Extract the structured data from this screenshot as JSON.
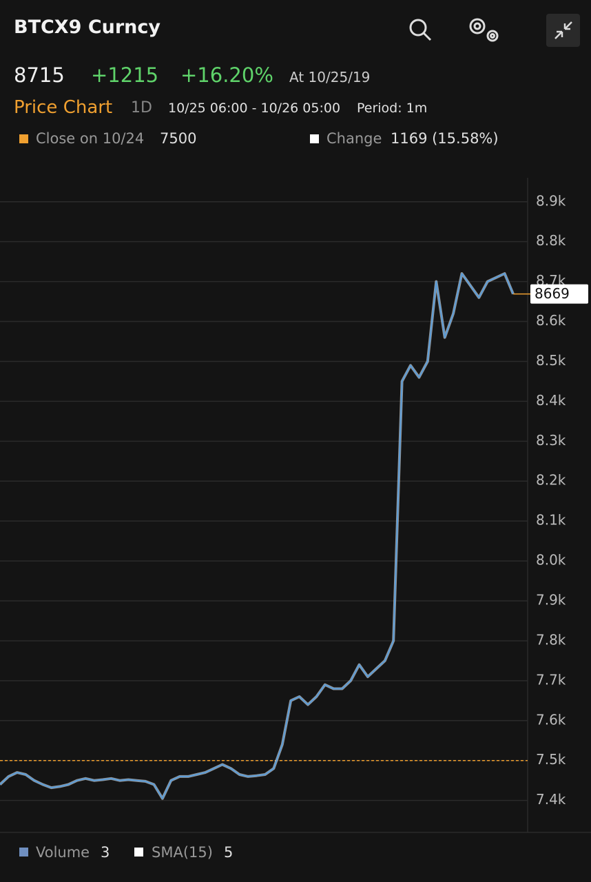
{
  "header": {
    "title": "BTCX9 Curncy",
    "price": "8715",
    "change": "+1215",
    "change_pct": "+16.20%",
    "date": "At 10/25/19",
    "tab": "Price Chart",
    "range": "1D",
    "window": "10/25 06:00 - 10/26 05:00",
    "period": "Period: 1m"
  },
  "legend": {
    "change_label": "Change",
    "change_value": "1169 (15.58%)"
  },
  "footer": {
    "volume_label": "Volume",
    "volume_value": "3",
    "sma_label": "SMA(15)",
    "sma_value": "5"
  },
  "chart_data": {
    "type": "line",
    "series": [
      {
        "name": "Price",
        "color": "#5b9bd5",
        "values": [
          7440,
          7460,
          7470,
          7465,
          7450,
          7440,
          7432,
          7435,
          7440,
          7450,
          7455,
          7450,
          7452,
          7455,
          7450,
          7452,
          7450,
          7448,
          7440,
          7405,
          7450,
          7460,
          7460,
          7465,
          7470,
          7480,
          7490,
          7480,
          7465,
          7460,
          7462,
          7465,
          7480,
          7540,
          7650,
          7660,
          7640,
          7660,
          7690,
          7680,
          7680,
          7700,
          7740,
          7710,
          7730,
          7750,
          7800,
          8450,
          8490,
          8460,
          8500,
          8700,
          8560,
          8620,
          8720,
          8690,
          8660,
          8700,
          8710,
          8720,
          8669
        ]
      }
    ],
    "reference": {
      "label": "Close on 10/24",
      "value": 7500,
      "color": "#f0a030"
    },
    "ylim": [
      7320,
      8960
    ],
    "yticks": [
      {
        "value": 7400,
        "label": "7.4k"
      },
      {
        "value": 7500,
        "label": "7.5k"
      },
      {
        "value": 7600,
        "label": "7.6k"
      },
      {
        "value": 7700,
        "label": "7.7k"
      },
      {
        "value": 7800,
        "label": "7.8k"
      },
      {
        "value": 7900,
        "label": "7.9k"
      },
      {
        "value": 8000,
        "label": "8.0k"
      },
      {
        "value": 8100,
        "label": "8.1k"
      },
      {
        "value": 8200,
        "label": "8.2k"
      },
      {
        "value": 8300,
        "label": "8.3k"
      },
      {
        "value": 8400,
        "label": "8.4k"
      },
      {
        "value": 8500,
        "label": "8.5k"
      },
      {
        "value": 8600,
        "label": "8.6k"
      },
      {
        "value": 8700,
        "label": "8.7k"
      },
      {
        "value": 8800,
        "label": "8.8k"
      },
      {
        "value": 8900,
        "label": "8.9k"
      }
    ],
    "grid": true
  }
}
